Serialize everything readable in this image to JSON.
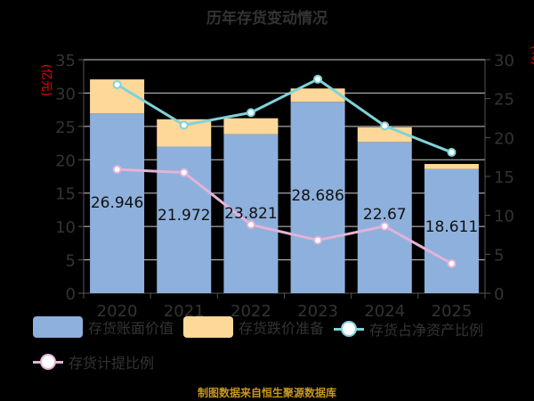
{
  "chart_data": {
    "type": "bar",
    "title": "历年存货变动情况",
    "categories": [
      "2020",
      "2021",
      "2022",
      "2023",
      "2024",
      "2025"
    ],
    "left_axis": {
      "label": "(亿元)",
      "range": [
        0,
        35
      ],
      "ticks": [
        0,
        5,
        10,
        15,
        20,
        25,
        30,
        35
      ]
    },
    "right_axis": {
      "label": "(%)",
      "range": [
        0,
        30
      ],
      "ticks": [
        0,
        5,
        10,
        15,
        20,
        25,
        30
      ]
    },
    "series": [
      {
        "name": "存货账面价值",
        "type": "bar",
        "stack": "a",
        "axis": "left",
        "color": "#8eb0dc",
        "values": [
          26.946,
          21.972,
          23.821,
          28.686,
          22.67,
          18.611
        ],
        "labels": [
          "26.946",
          "21.972",
          "23.821",
          "28.686",
          "22.67",
          "18.611"
        ]
      },
      {
        "name": "存货跌价准备",
        "type": "bar",
        "stack": "a",
        "axis": "left",
        "color": "#fdd899",
        "values": [
          5.1,
          4.1,
          2.4,
          2.0,
          2.2,
          0.76
        ]
      },
      {
        "name": "存货占净资产比例",
        "type": "line",
        "axis": "right",
        "color": "#7fd3d8",
        "values": [
          26.8,
          21.6,
          23.2,
          27.5,
          21.5,
          18.1
        ]
      },
      {
        "name": "存货计提比例",
        "type": "line",
        "axis": "right",
        "color": "#e2b3d6",
        "values": [
          15.9,
          15.5,
          8.8,
          6.8,
          8.6,
          3.8
        ]
      }
    ],
    "grid": true,
    "legend_position": "bottom",
    "axis_label_color": "#ff0000",
    "text_color": "#333333"
  },
  "footer": "制图数据来自恒生聚源数据库"
}
